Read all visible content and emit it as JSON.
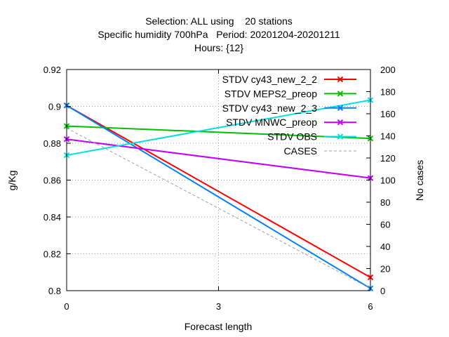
{
  "chart_data": {
    "type": "line",
    "title_lines": [
      "Selection: ALL using    20 stations",
      "Specific humidity 700hPa   Period: 20201204-20201211",
      "Hours: {12}"
    ],
    "xlabel": "Forecast length",
    "ylabel": "g/Kg",
    "y2label": "No cases",
    "x": [
      0,
      3,
      6
    ],
    "xlim": [
      0,
      6
    ],
    "ylim": [
      0.8,
      0.92
    ],
    "y2lim": [
      0,
      200
    ],
    "x_ticks": [
      0,
      3,
      6
    ],
    "y_ticks": [
      0.8,
      0.82,
      0.84,
      0.86,
      0.88,
      0.9,
      0.92
    ],
    "y2_ticks": [
      0,
      20,
      40,
      60,
      80,
      100,
      120,
      140,
      160,
      180,
      200
    ],
    "grid": true,
    "legend_position": "top-right",
    "series": [
      {
        "name": "STDV cy43_new_2_2",
        "color": "#ff0000",
        "axis": "y",
        "x": [
          0,
          6
        ],
        "values": [
          0.9005,
          0.8072
        ]
      },
      {
        "name": "STDV MEPS2_preop",
        "color": "#00c000",
        "axis": "y",
        "x": [
          0,
          6
        ],
        "values": [
          0.8893,
          0.8826
        ]
      },
      {
        "name": "STDV cy43_new_2_3",
        "color": "#0080ff",
        "axis": "y",
        "x": [
          0,
          6
        ],
        "values": [
          0.9005,
          0.8012
        ]
      },
      {
        "name": "STDV MNWC_preop",
        "color": "#c000ff",
        "axis": "y",
        "x": [
          0,
          6
        ],
        "values": [
          0.8822,
          0.8611
        ]
      },
      {
        "name": "STDV OBS",
        "color": "#00e0e0",
        "axis": "y",
        "x": [
          0,
          6
        ],
        "values": [
          0.8735,
          0.9034
        ]
      },
      {
        "name": "CASES",
        "color": "#a0a0a0",
        "axis": "y2",
        "dashed": true,
        "x": [
          0,
          6
        ],
        "values": [
          147,
          2
        ]
      }
    ]
  }
}
